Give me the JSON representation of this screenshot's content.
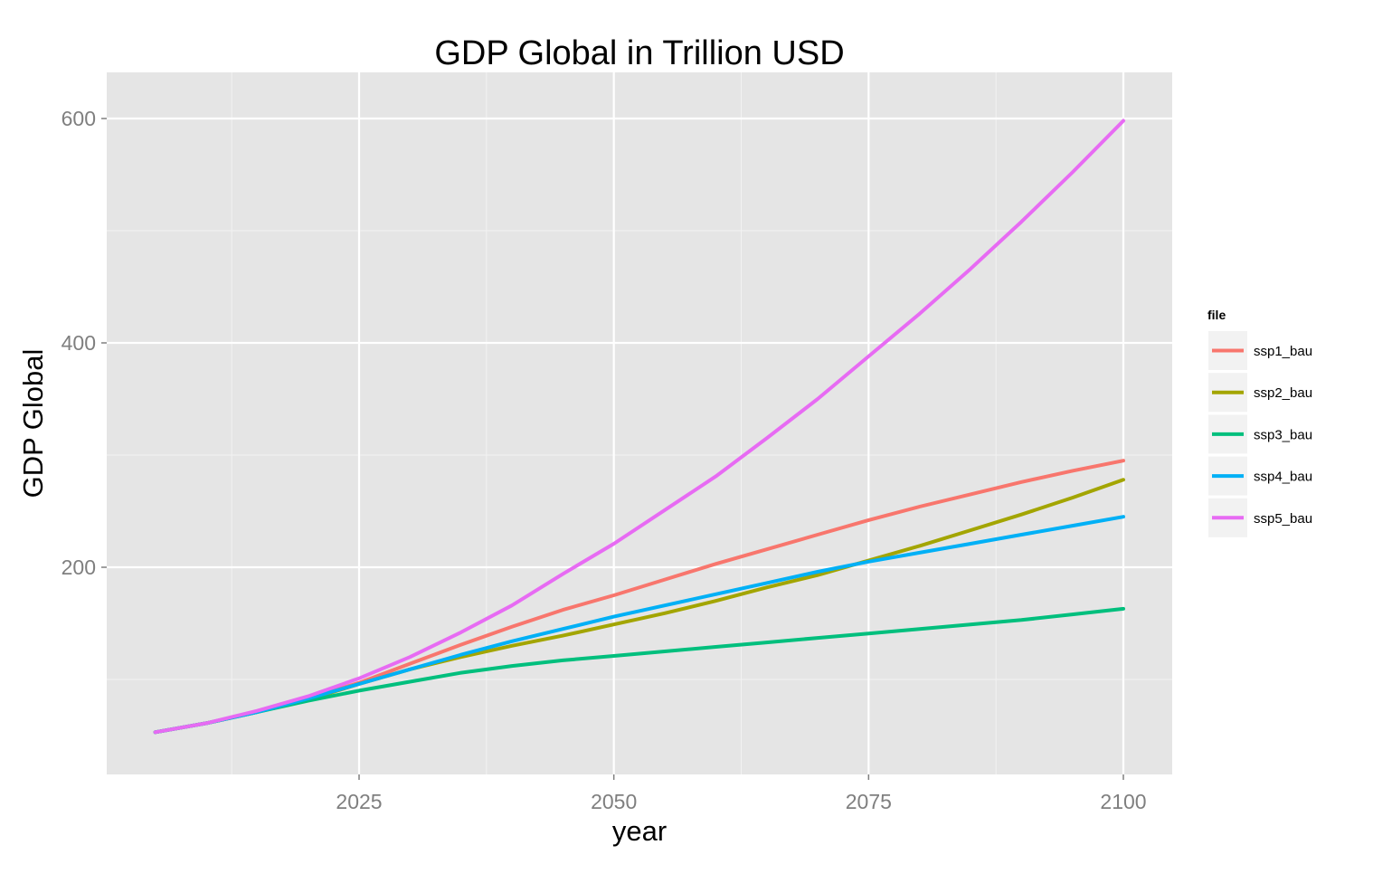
{
  "chart_data": {
    "type": "line",
    "title": "GDP Global in Trillion USD",
    "xlabel": "year",
    "ylabel": "GDP Global",
    "xlim": [
      2000,
      2105
    ],
    "ylim": [
      0,
      640
    ],
    "x_ticks": [
      2025,
      2050,
      2075,
      2100
    ],
    "x_tick_labels": [
      "2025",
      "2050",
      "2075",
      "2100"
    ],
    "y_ticks": [
      200,
      400,
      600
    ],
    "y_tick_labels": [
      "200",
      "400",
      "600"
    ],
    "x_minor_ticks": [
      2012.5,
      2037.5,
      2062.5,
      2087.5
    ],
    "y_minor_ticks": [
      100,
      300,
      500
    ],
    "grid": true,
    "legend": {
      "title": "file",
      "position": "right"
    },
    "x": [
      2005,
      2010,
      2015,
      2020,
      2025,
      2030,
      2035,
      2040,
      2045,
      2050,
      2055,
      2060,
      2065,
      2070,
      2075,
      2080,
      2085,
      2090,
      2095,
      2100
    ],
    "series": [
      {
        "name": "ssp1_bau",
        "color": "#F8766D",
        "values": [
          53,
          61,
          71,
          83,
          97,
          114,
          131,
          147,
          162,
          175,
          189,
          203,
          216,
          229,
          242,
          254,
          265,
          276,
          286,
          295
        ]
      },
      {
        "name": "ssp2_bau",
        "color": "#A3A500",
        "values": [
          53,
          61,
          71,
          82,
          96,
          109,
          120,
          130,
          139,
          149,
          159,
          170,
          182,
          193,
          206,
          219,
          233,
          247,
          262,
          278
        ]
      },
      {
        "name": "ssp3_bau",
        "color": "#00BF7D",
        "values": [
          53,
          61,
          71,
          81,
          90,
          98,
          106,
          112,
          117,
          121,
          125,
          129,
          133,
          137,
          141,
          145,
          149,
          153,
          158,
          163
        ]
      },
      {
        "name": "ssp4_bau",
        "color": "#00B0F6",
        "values": [
          53,
          61,
          71,
          83,
          96,
          109,
          122,
          134,
          145,
          156,
          166,
          176,
          186,
          196,
          205,
          213,
          221,
          229,
          237,
          245
        ]
      },
      {
        "name": "ssp5_bau",
        "color": "#E76BF3",
        "values": [
          53,
          61,
          72,
          85,
          101,
          120,
          142,
          166,
          194,
          221,
          251,
          281,
          315,
          350,
          388,
          426,
          466,
          508,
          552,
          598
        ]
      }
    ]
  }
}
